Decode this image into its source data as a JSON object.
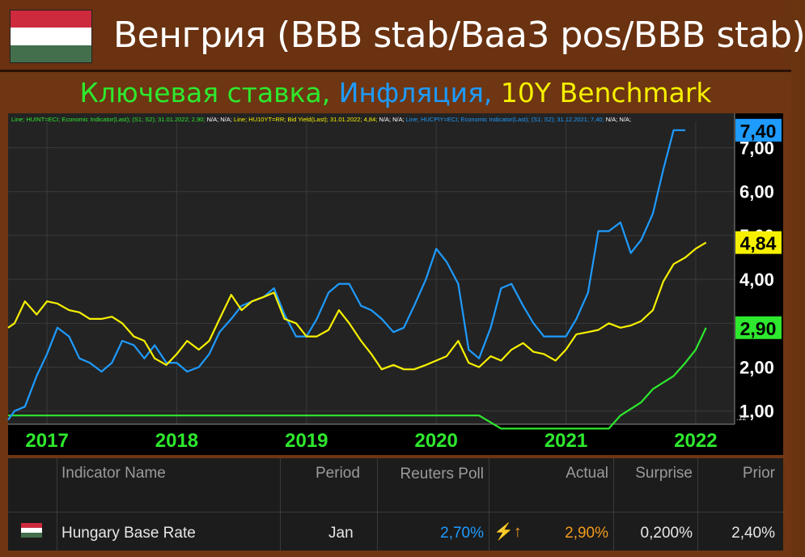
{
  "header": {
    "title": "Венгрия (BBB stab/Baa3 pos/BBB stab)",
    "flag_colors": [
      "#cd2a3e",
      "#ffffff",
      "#436f4d"
    ],
    "subtitle_parts": [
      {
        "text": "Ключевая ставка,",
        "color": "#2ee82e"
      },
      {
        "text": " Инфляция,",
        "color": "#1e9bff"
      },
      {
        "text": " 10Y Benchmark",
        "color": "#f6f000"
      }
    ]
  },
  "legend_line": [
    {
      "text": "Line; HUINT=ECI; Economic Indicator(Last); (S1; S2); 31.01.2022; 2,90;",
      "color": "#2ee82e"
    },
    {
      "text": " N/A; N/A;",
      "color": "#ffffff"
    },
    {
      "text": " Line; HU10YT=RR; Bid Yield(Last); 31.01.2022; 4,84;",
      "color": "#f6f000"
    },
    {
      "text": " N/A; N/A;",
      "color": "#ffffff"
    },
    {
      "text": " Line; HUCPIY=ECI; Economic Indicator(Last); (S1; S2); 31.12.2021; 7,40;",
      "color": "#1e9bff"
    },
    {
      "text": " N/A; N/A;",
      "color": "#ffffff"
    }
  ],
  "chart_data": {
    "type": "line",
    "ylim": [
      0.7,
      7.6
    ],
    "y_ticks": [
      {
        "value": 1,
        "label": "1,00"
      },
      {
        "value": 2,
        "label": "2,00"
      },
      {
        "value": 3,
        "label": "3,00"
      },
      {
        "value": 4,
        "label": "4,00"
      },
      {
        "value": 5,
        "label": "5,00"
      },
      {
        "value": 6,
        "label": "6,00"
      },
      {
        "value": 7,
        "label": "7,00"
      }
    ],
    "x_ticks": [
      {
        "value": 2017.0,
        "label": "2017"
      },
      {
        "value": 2018.0,
        "label": "2018"
      },
      {
        "value": 2019.0,
        "label": "2019"
      },
      {
        "value": 2020.0,
        "label": "2020"
      },
      {
        "value": 2021.0,
        "label": "2021"
      },
      {
        "value": 2022.0,
        "label": "2022"
      }
    ],
    "xlim": [
      2016.7,
      2022.3
    ],
    "grid": true,
    "small_label": ".12",
    "series": [
      {
        "name": "Ключевая ставка",
        "color": "#2ee82e",
        "last_label": "2,90",
        "last_value": 2.9,
        "points": [
          [
            2016.7,
            0.9
          ],
          [
            2020.33,
            0.9
          ],
          [
            2020.5,
            0.6
          ],
          [
            2021.33,
            0.6
          ],
          [
            2021.42,
            0.9
          ],
          [
            2021.58,
            1.2
          ],
          [
            2021.67,
            1.5
          ],
          [
            2021.83,
            1.8
          ],
          [
            2021.92,
            2.1
          ],
          [
            2022.0,
            2.4
          ],
          [
            2022.08,
            2.9
          ]
        ]
      },
      {
        "name": "Инфляция",
        "color": "#1e9bff",
        "last_label": "7,40",
        "last_value": 7.4,
        "points": [
          [
            2016.7,
            0.8
          ],
          [
            2016.75,
            1.0
          ],
          [
            2016.83,
            1.1
          ],
          [
            2016.92,
            1.8
          ],
          [
            2017.0,
            2.3
          ],
          [
            2017.08,
            2.9
          ],
          [
            2017.17,
            2.7
          ],
          [
            2017.25,
            2.2
          ],
          [
            2017.33,
            2.1
          ],
          [
            2017.42,
            1.9
          ],
          [
            2017.5,
            2.1
          ],
          [
            2017.58,
            2.6
          ],
          [
            2017.67,
            2.5
          ],
          [
            2017.75,
            2.2
          ],
          [
            2017.83,
            2.5
          ],
          [
            2017.92,
            2.1
          ],
          [
            2018.0,
            2.1
          ],
          [
            2018.08,
            1.9
          ],
          [
            2018.17,
            2.0
          ],
          [
            2018.25,
            2.3
          ],
          [
            2018.33,
            2.8
          ],
          [
            2018.42,
            3.1
          ],
          [
            2018.5,
            3.4
          ],
          [
            2018.58,
            3.5
          ],
          [
            2018.67,
            3.6
          ],
          [
            2018.75,
            3.8
          ],
          [
            2018.83,
            3.2
          ],
          [
            2018.92,
            2.7
          ],
          [
            2019.0,
            2.7
          ],
          [
            2019.08,
            3.1
          ],
          [
            2019.17,
            3.7
          ],
          [
            2019.25,
            3.9
          ],
          [
            2019.33,
            3.9
          ],
          [
            2019.42,
            3.4
          ],
          [
            2019.5,
            3.3
          ],
          [
            2019.58,
            3.1
          ],
          [
            2019.67,
            2.8
          ],
          [
            2019.75,
            2.9
          ],
          [
            2019.83,
            3.4
          ],
          [
            2019.92,
            4.0
          ],
          [
            2020.0,
            4.7
          ],
          [
            2020.08,
            4.4
          ],
          [
            2020.17,
            3.9
          ],
          [
            2020.25,
            2.4
          ],
          [
            2020.33,
            2.2
          ],
          [
            2020.42,
            2.9
          ],
          [
            2020.5,
            3.8
          ],
          [
            2020.58,
            3.9
          ],
          [
            2020.67,
            3.4
          ],
          [
            2020.75,
            3.0
          ],
          [
            2020.83,
            2.7
          ],
          [
            2020.92,
            2.7
          ],
          [
            2021.0,
            2.7
          ],
          [
            2021.08,
            3.1
          ],
          [
            2021.17,
            3.7
          ],
          [
            2021.25,
            5.1
          ],
          [
            2021.33,
            5.1
          ],
          [
            2021.42,
            5.3
          ],
          [
            2021.5,
            4.6
          ],
          [
            2021.58,
            4.9
          ],
          [
            2021.67,
            5.5
          ],
          [
            2021.75,
            6.5
          ],
          [
            2021.83,
            7.4
          ],
          [
            2021.92,
            7.4
          ]
        ]
      },
      {
        "name": "10Y Benchmark",
        "color": "#f6f000",
        "last_label": "4,84",
        "last_value": 4.84,
        "points": [
          [
            2016.7,
            2.9
          ],
          [
            2016.75,
            3.0
          ],
          [
            2016.83,
            3.5
          ],
          [
            2016.92,
            3.2
          ],
          [
            2017.0,
            3.5
          ],
          [
            2017.08,
            3.45
          ],
          [
            2017.17,
            3.3
          ],
          [
            2017.25,
            3.25
          ],
          [
            2017.33,
            3.1
          ],
          [
            2017.42,
            3.1
          ],
          [
            2017.5,
            3.15
          ],
          [
            2017.58,
            3.0
          ],
          [
            2017.67,
            2.7
          ],
          [
            2017.75,
            2.6
          ],
          [
            2017.83,
            2.2
          ],
          [
            2017.92,
            2.05
          ],
          [
            2018.0,
            2.3
          ],
          [
            2018.08,
            2.6
          ],
          [
            2018.17,
            2.4
          ],
          [
            2018.25,
            2.6
          ],
          [
            2018.33,
            3.1
          ],
          [
            2018.42,
            3.65
          ],
          [
            2018.5,
            3.3
          ],
          [
            2018.58,
            3.5
          ],
          [
            2018.67,
            3.6
          ],
          [
            2018.75,
            3.7
          ],
          [
            2018.83,
            3.1
          ],
          [
            2018.92,
            3.0
          ],
          [
            2019.0,
            2.7
          ],
          [
            2019.08,
            2.7
          ],
          [
            2019.17,
            2.85
          ],
          [
            2019.25,
            3.3
          ],
          [
            2019.33,
            3.0
          ],
          [
            2019.42,
            2.6
          ],
          [
            2019.5,
            2.3
          ],
          [
            2019.58,
            1.95
          ],
          [
            2019.67,
            2.05
          ],
          [
            2019.75,
            1.95
          ],
          [
            2019.83,
            1.95
          ],
          [
            2019.92,
            2.05
          ],
          [
            2020.0,
            2.15
          ],
          [
            2020.08,
            2.25
          ],
          [
            2020.17,
            2.6
          ],
          [
            2020.25,
            2.1
          ],
          [
            2020.33,
            2.0
          ],
          [
            2020.42,
            2.25
          ],
          [
            2020.5,
            2.15
          ],
          [
            2020.58,
            2.4
          ],
          [
            2020.67,
            2.55
          ],
          [
            2020.75,
            2.35
          ],
          [
            2020.83,
            2.3
          ],
          [
            2020.92,
            2.15
          ],
          [
            2021.0,
            2.4
          ],
          [
            2021.08,
            2.75
          ],
          [
            2021.17,
            2.8
          ],
          [
            2021.25,
            2.85
          ],
          [
            2021.33,
            3.0
          ],
          [
            2021.42,
            2.9
          ],
          [
            2021.5,
            2.95
          ],
          [
            2021.58,
            3.05
          ],
          [
            2021.67,
            3.3
          ],
          [
            2021.75,
            3.95
          ],
          [
            2021.83,
            4.35
          ],
          [
            2021.92,
            4.5
          ],
          [
            2022.0,
            4.7
          ],
          [
            2022.08,
            4.84
          ]
        ]
      }
    ]
  },
  "table": {
    "headers": [
      "Indicator Name",
      "Period",
      "Reuters Poll",
      "Actual",
      "Surprise",
      "Prior"
    ],
    "row": {
      "name": "Hungary Base Rate",
      "period": "Jan",
      "poll": "2,70%",
      "actual": "2,90%",
      "surprise": "0,200%",
      "prior": "2,40%",
      "icon": "lightning-up-arrow-icon"
    }
  }
}
